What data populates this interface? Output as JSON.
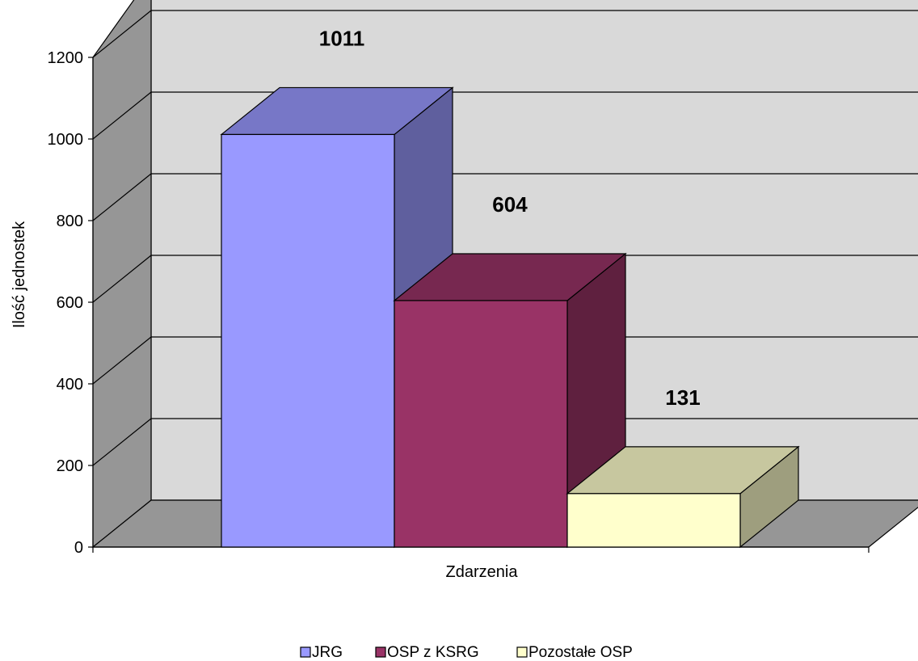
{
  "chart_data": {
    "type": "bar",
    "style": "3d-clustered-column",
    "categories": [
      "Zdarzenia"
    ],
    "xlabel": "Zdarzenia",
    "ylabel": "Ilość jednostek",
    "ylim": [
      0,
      1200
    ],
    "yticks": [
      0,
      200,
      400,
      600,
      800,
      1000,
      1200
    ],
    "grid": true,
    "legend_position": "bottom",
    "series": [
      {
        "name": "JRG",
        "values": [
          1011
        ],
        "label": "1011",
        "color": "#9999ff"
      },
      {
        "name": "OSP z KSRG",
        "values": [
          604
        ],
        "label": "604",
        "color": "#993366"
      },
      {
        "name": "Pozostałe OSP",
        "values": [
          131
        ],
        "label": "131",
        "color": "#ffffcc"
      }
    ],
    "colors": {
      "back_wall": "#d9d9d9",
      "side_wall": "#969696",
      "floor": "#969696"
    }
  }
}
